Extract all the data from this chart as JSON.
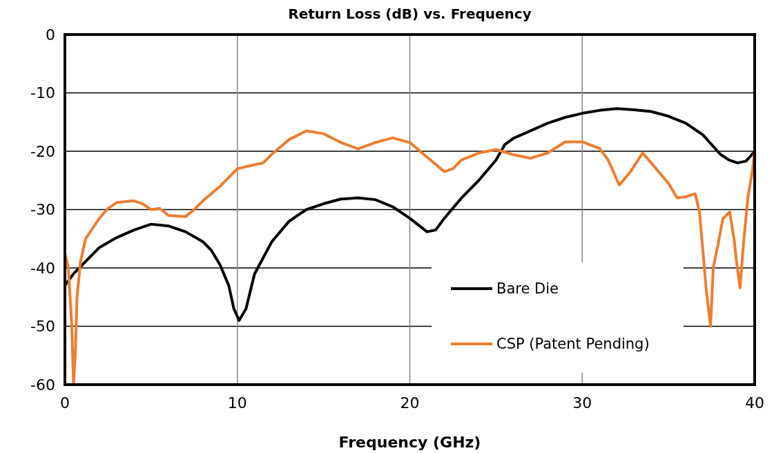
{
  "chart_data": {
    "type": "line",
    "title": "Return Loss (dB) vs. Frequency",
    "xlabel": "Frequency (GHz)",
    "xlim": [
      0,
      40
    ],
    "xticks": [
      0,
      10,
      20,
      30,
      40
    ],
    "ylim": [
      -60,
      0
    ],
    "yticks": [
      -60,
      -50,
      -40,
      -30,
      -20,
      -10,
      0
    ],
    "grid": true,
    "legend": "bottom right",
    "line_style": "solid",
    "series": [
      {
        "name": "Bare Die",
        "color": "#000000",
        "x": [
          0,
          0.5,
          1,
          2,
          3,
          4,
          5,
          6,
          7,
          8,
          8.5,
          9,
          9.5,
          9.8,
          10.1,
          10.5,
          11,
          12,
          13,
          14,
          15,
          16,
          17,
          18,
          19,
          20,
          21,
          21.5,
          22,
          23,
          24,
          25,
          25.5,
          26,
          27,
          28,
          29,
          30,
          31,
          32,
          33,
          34,
          35,
          36,
          37,
          38,
          38.5,
          39,
          39.5,
          40
        ],
        "values": [
          -43,
          -41,
          -39.5,
          -36.5,
          -34.8,
          -33.5,
          -32.5,
          -32.8,
          -33.8,
          -35.5,
          -37,
          -39.5,
          -43,
          -47,
          -49,
          -47,
          -41,
          -35.5,
          -32,
          -30,
          -29,
          -28.2,
          -28,
          -28.3,
          -29.5,
          -31.5,
          -33.8,
          -33.5,
          -31.5,
          -28,
          -25,
          -21.5,
          -18.9,
          -17.8,
          -16.5,
          -15.2,
          -14.2,
          -13.5,
          -13,
          -12.7,
          -12.9,
          -13.2,
          -14,
          -15.2,
          -17.2,
          -20.5,
          -21.5,
          -22,
          -21.7,
          -20
        ]
      },
      {
        "name": "CSP (Patent Pending)",
        "color": "#ed7d31",
        "x": [
          0,
          0.2,
          0.4,
          0.5,
          0.6,
          0.7,
          0.9,
          1.2,
          2,
          2.5,
          3,
          4,
          4.5,
          5,
          5.5,
          6,
          7,
          7.5,
          8,
          9,
          10,
          11,
          11.5,
          12,
          13,
          14,
          15,
          16,
          17,
          18,
          19,
          20,
          21,
          22,
          22.5,
          23,
          24,
          25,
          26,
          27,
          28,
          29,
          30,
          31,
          31.5,
          32.15,
          32.8,
          33.5,
          34,
          35,
          35.5,
          36,
          36.55,
          36.8,
          37.2,
          37.44,
          37.6,
          37.88,
          38.15,
          38.55,
          38.8,
          38.95,
          39.15,
          39.35,
          39.6,
          39.87,
          40
        ],
        "values": [
          -37.5,
          -40,
          -50,
          -60,
          -55,
          -45,
          -39,
          -35,
          -31.5,
          -29.8,
          -28.8,
          -28.5,
          -29,
          -30,
          -29.8,
          -31,
          -31.2,
          -30,
          -28.5,
          -26,
          -23,
          -22.3,
          -22,
          -20.5,
          -18,
          -16.5,
          -17,
          -18.5,
          -19.6,
          -18.5,
          -17.7,
          -18.5,
          -21,
          -23.5,
          -23,
          -21.5,
          -20.3,
          -19.7,
          -20.6,
          -21.2,
          -20.3,
          -18.4,
          -18.4,
          -19.5,
          -21.5,
          -25.8,
          -23.5,
          -20.3,
          -22,
          -25.5,
          -28,
          -27.8,
          -27.3,
          -30.4,
          -44,
          -50,
          -39.9,
          -35.9,
          -31.6,
          -30.4,
          -35,
          -39,
          -43.4,
          -35.9,
          -28,
          -23.3,
          -19.8
        ]
      }
    ]
  }
}
